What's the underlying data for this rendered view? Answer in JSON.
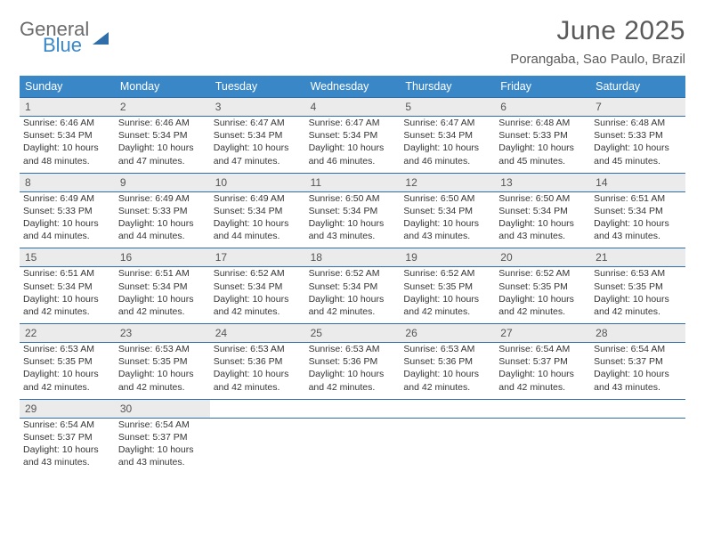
{
  "logo": {
    "general": "General",
    "blue": "Blue"
  },
  "title": "June 2025",
  "location": "Porangaba, Sao Paulo, Brazil",
  "colors": {
    "header_bg": "#3a87c8",
    "header_text": "#ffffff",
    "daynum_bg": "#ebebeb",
    "border": "#2f6ea8",
    "text": "#353535",
    "title_text": "#5a5a5a"
  },
  "fonts": {
    "title_pt": 30,
    "location_pt": 15,
    "dow_pt": 12.5,
    "daynum_pt": 12,
    "cell_pt": 10.5
  },
  "dow": [
    "Sunday",
    "Monday",
    "Tuesday",
    "Wednesday",
    "Thursday",
    "Friday",
    "Saturday"
  ],
  "weeks": [
    [
      {
        "n": "1",
        "sunrise": "6:46 AM",
        "sunset": "5:34 PM",
        "daylight": "10 hours and 48 minutes."
      },
      {
        "n": "2",
        "sunrise": "6:46 AM",
        "sunset": "5:34 PM",
        "daylight": "10 hours and 47 minutes."
      },
      {
        "n": "3",
        "sunrise": "6:47 AM",
        "sunset": "5:34 PM",
        "daylight": "10 hours and 47 minutes."
      },
      {
        "n": "4",
        "sunrise": "6:47 AM",
        "sunset": "5:34 PM",
        "daylight": "10 hours and 46 minutes."
      },
      {
        "n": "5",
        "sunrise": "6:47 AM",
        "sunset": "5:34 PM",
        "daylight": "10 hours and 46 minutes."
      },
      {
        "n": "6",
        "sunrise": "6:48 AM",
        "sunset": "5:33 PM",
        "daylight": "10 hours and 45 minutes."
      },
      {
        "n": "7",
        "sunrise": "6:48 AM",
        "sunset": "5:33 PM",
        "daylight": "10 hours and 45 minutes."
      }
    ],
    [
      {
        "n": "8",
        "sunrise": "6:49 AM",
        "sunset": "5:33 PM",
        "daylight": "10 hours and 44 minutes."
      },
      {
        "n": "9",
        "sunrise": "6:49 AM",
        "sunset": "5:33 PM",
        "daylight": "10 hours and 44 minutes."
      },
      {
        "n": "10",
        "sunrise": "6:49 AM",
        "sunset": "5:34 PM",
        "daylight": "10 hours and 44 minutes."
      },
      {
        "n": "11",
        "sunrise": "6:50 AM",
        "sunset": "5:34 PM",
        "daylight": "10 hours and 43 minutes."
      },
      {
        "n": "12",
        "sunrise": "6:50 AM",
        "sunset": "5:34 PM",
        "daylight": "10 hours and 43 minutes."
      },
      {
        "n": "13",
        "sunrise": "6:50 AM",
        "sunset": "5:34 PM",
        "daylight": "10 hours and 43 minutes."
      },
      {
        "n": "14",
        "sunrise": "6:51 AM",
        "sunset": "5:34 PM",
        "daylight": "10 hours and 43 minutes."
      }
    ],
    [
      {
        "n": "15",
        "sunrise": "6:51 AM",
        "sunset": "5:34 PM",
        "daylight": "10 hours and 42 minutes."
      },
      {
        "n": "16",
        "sunrise": "6:51 AM",
        "sunset": "5:34 PM",
        "daylight": "10 hours and 42 minutes."
      },
      {
        "n": "17",
        "sunrise": "6:52 AM",
        "sunset": "5:34 PM",
        "daylight": "10 hours and 42 minutes."
      },
      {
        "n": "18",
        "sunrise": "6:52 AM",
        "sunset": "5:34 PM",
        "daylight": "10 hours and 42 minutes."
      },
      {
        "n": "19",
        "sunrise": "6:52 AM",
        "sunset": "5:35 PM",
        "daylight": "10 hours and 42 minutes."
      },
      {
        "n": "20",
        "sunrise": "6:52 AM",
        "sunset": "5:35 PM",
        "daylight": "10 hours and 42 minutes."
      },
      {
        "n": "21",
        "sunrise": "6:53 AM",
        "sunset": "5:35 PM",
        "daylight": "10 hours and 42 minutes."
      }
    ],
    [
      {
        "n": "22",
        "sunrise": "6:53 AM",
        "sunset": "5:35 PM",
        "daylight": "10 hours and 42 minutes."
      },
      {
        "n": "23",
        "sunrise": "6:53 AM",
        "sunset": "5:35 PM",
        "daylight": "10 hours and 42 minutes."
      },
      {
        "n": "24",
        "sunrise": "6:53 AM",
        "sunset": "5:36 PM",
        "daylight": "10 hours and 42 minutes."
      },
      {
        "n": "25",
        "sunrise": "6:53 AM",
        "sunset": "5:36 PM",
        "daylight": "10 hours and 42 minutes."
      },
      {
        "n": "26",
        "sunrise": "6:53 AM",
        "sunset": "5:36 PM",
        "daylight": "10 hours and 42 minutes."
      },
      {
        "n": "27",
        "sunrise": "6:54 AM",
        "sunset": "5:37 PM",
        "daylight": "10 hours and 42 minutes."
      },
      {
        "n": "28",
        "sunrise": "6:54 AM",
        "sunset": "5:37 PM",
        "daylight": "10 hours and 43 minutes."
      }
    ],
    [
      {
        "n": "29",
        "sunrise": "6:54 AM",
        "sunset": "5:37 PM",
        "daylight": "10 hours and 43 minutes."
      },
      {
        "n": "30",
        "sunrise": "6:54 AM",
        "sunset": "5:37 PM",
        "daylight": "10 hours and 43 minutes."
      },
      null,
      null,
      null,
      null,
      null
    ]
  ],
  "labels": {
    "sunrise": "Sunrise:",
    "sunset": "Sunset:",
    "daylight": "Daylight:"
  }
}
